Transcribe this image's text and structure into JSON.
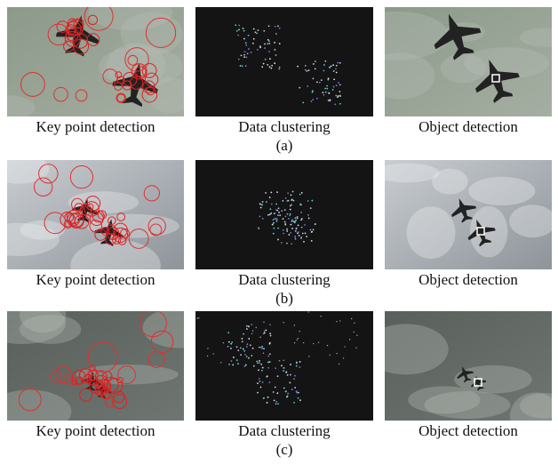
{
  "figure": {
    "rows": [
      {
        "label": "(a)",
        "panels": [
          {
            "caption": "Key point detection"
          },
          {
            "caption": "Data clustering"
          },
          {
            "caption": "Object detection"
          }
        ]
      },
      {
        "label": "(b)",
        "panels": [
          {
            "caption": "Key point detection"
          },
          {
            "caption": "Data clustering"
          },
          {
            "caption": "Object detection"
          }
        ]
      },
      {
        "label": "(c)",
        "panels": [
          {
            "caption": "Key point detection"
          },
          {
            "caption": "Data clustering"
          },
          {
            "caption": "Object detection"
          }
        ]
      }
    ]
  }
}
